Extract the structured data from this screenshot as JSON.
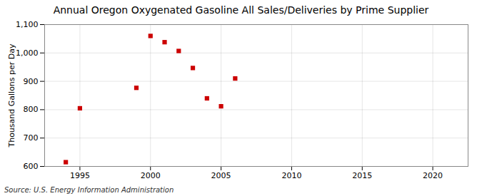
{
  "chart_data": {
    "type": "scatter",
    "title": "Annual Oregon Oxygenated Gasoline All Sales/Deliveries by Prime Supplier",
    "ylabel": "Thousand Gallons per Day",
    "source": "Source: U.S. Energy Information Administration",
    "x": [
      1994,
      1995,
      1999,
      2000,
      2001,
      2002,
      2003,
      2004,
      2005,
      2006
    ],
    "values": [
      615,
      805,
      877,
      1060,
      1038,
      1007,
      947,
      840,
      812,
      910
    ],
    "color": "#cc0000",
    "marker": "square",
    "xlim": [
      1992.5,
      2022.5
    ],
    "ylim": [
      600,
      1100
    ],
    "xticks": [
      1995,
      2000,
      2005,
      2010,
      2015,
      2020
    ],
    "yticks": [
      600,
      700,
      800,
      900,
      {
        "value": 1000,
        "label": "1,000"
      },
      {
        "value": 1100,
        "label": "1,100"
      }
    ],
    "grid": true
  }
}
